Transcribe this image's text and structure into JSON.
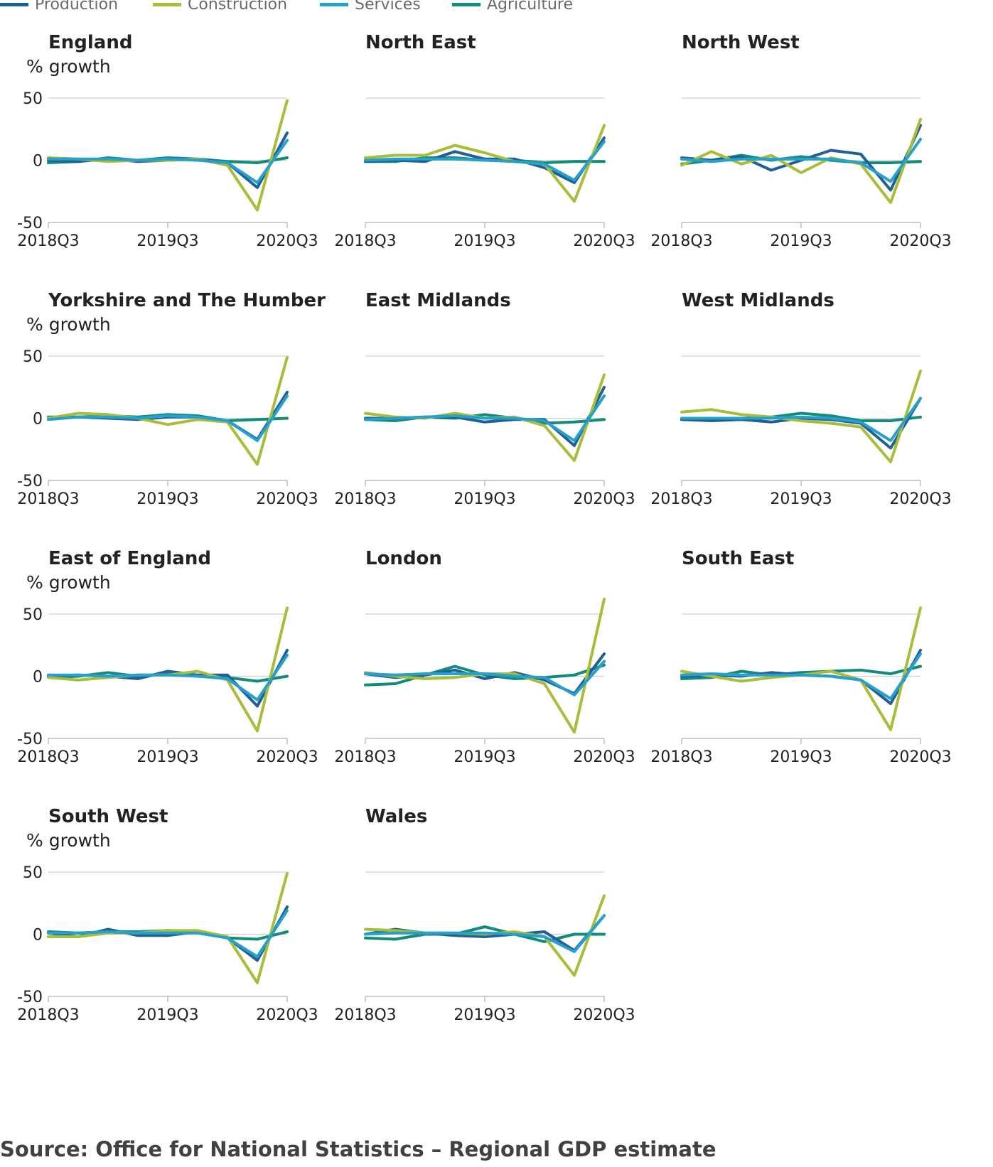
{
  "legend": [
    {
      "name": "Production",
      "color": "#206095"
    },
    {
      "name": "Construction",
      "color": "#a8bd3a"
    },
    {
      "name": "Services",
      "color": "#27a0cc"
    },
    {
      "name": "Agriculture",
      "color": "#118c7b"
    }
  ],
  "source": "Source: Office for National Statistics – Regional GDP estimate",
  "chart_data": [
    {
      "type": "line",
      "title": "England",
      "ylabel": "% growth",
      "ylim": [
        -50,
        50
      ],
      "yticks": [
        50,
        0,
        -50
      ],
      "xticks": [
        "2018Q3",
        "2019Q3",
        "2020Q3"
      ],
      "x": [
        "2018Q3",
        "2018Q4",
        "2019Q1",
        "2019Q2",
        "2019Q3",
        "2019Q4",
        "2020Q1",
        "2020Q2",
        "2020Q3"
      ],
      "series": [
        {
          "name": "Production",
          "values": [
            0,
            -1,
            1,
            -1,
            0,
            1,
            -2,
            -22,
            22
          ]
        },
        {
          "name": "Construction",
          "values": [
            2,
            1,
            -1,
            0,
            0,
            1,
            -4,
            -40,
            48
          ]
        },
        {
          "name": "Services",
          "values": [
            1,
            1,
            1,
            0,
            1,
            0,
            -2,
            -18,
            16
          ]
        },
        {
          "name": "Agriculture",
          "values": [
            -2,
            -1,
            2,
            0,
            2,
            1,
            -1,
            -2,
            2
          ]
        }
      ]
    },
    {
      "type": "line",
      "title": "North East",
      "ylabel": "",
      "ylim": [
        -50,
        50
      ],
      "yticks": [
        50,
        0,
        -50
      ],
      "xticks": [
        "2018Q3",
        "2019Q3",
        "2020Q3"
      ],
      "x": [
        "2018Q3",
        "2018Q4",
        "2019Q1",
        "2019Q2",
        "2019Q3",
        "2019Q4",
        "2020Q1",
        "2020Q2",
        "2020Q3"
      ],
      "series": [
        {
          "name": "Production",
          "values": [
            -1,
            0,
            -1,
            7,
            1,
            1,
            -6,
            -18,
            18
          ]
        },
        {
          "name": "Construction",
          "values": [
            2,
            4,
            4,
            12,
            6,
            -1,
            -3,
            -33,
            28
          ]
        },
        {
          "name": "Services",
          "values": [
            0,
            1,
            1,
            1,
            0,
            -1,
            -3,
            -16,
            15
          ]
        },
        {
          "name": "Agriculture",
          "values": [
            -1,
            -1,
            2,
            2,
            0,
            0,
            -2,
            -1,
            -1
          ]
        }
      ]
    },
    {
      "type": "line",
      "title": "North West",
      "ylabel": "",
      "ylim": [
        -50,
        50
      ],
      "yticks": [
        50,
        0,
        -50
      ],
      "xticks": [
        "2018Q3",
        "2019Q3",
        "2020Q3"
      ],
      "x": [
        "2018Q3",
        "2018Q4",
        "2019Q1",
        "2019Q2",
        "2019Q3",
        "2019Q4",
        "2020Q1",
        "2020Q2",
        "2020Q3"
      ],
      "series": [
        {
          "name": "Production",
          "values": [
            2,
            0,
            3,
            -8,
            0,
            8,
            5,
            -24,
            28
          ]
        },
        {
          "name": "Construction",
          "values": [
            -4,
            7,
            -3,
            4,
            -10,
            2,
            -3,
            -34,
            33
          ]
        },
        {
          "name": "Services",
          "values": [
            1,
            -1,
            1,
            1,
            1,
            1,
            -2,
            -17,
            17
          ]
        },
        {
          "name": "Agriculture",
          "values": [
            -3,
            0,
            4,
            0,
            3,
            0,
            -2,
            -2,
            -1
          ]
        }
      ]
    },
    {
      "type": "line",
      "title": "Yorkshire and The Humber",
      "ylabel": "% growth",
      "ylim": [
        -50,
        50
      ],
      "yticks": [
        50,
        0,
        -50
      ],
      "xticks": [
        "2018Q3",
        "2019Q3",
        "2020Q3"
      ],
      "x": [
        "2018Q3",
        "2018Q4",
        "2019Q1",
        "2019Q2",
        "2019Q3",
        "2019Q4",
        "2020Q1",
        "2020Q2",
        "2020Q3"
      ],
      "series": [
        {
          "name": "Production",
          "values": [
            0,
            1,
            0,
            -1,
            1,
            1,
            -2,
            -17,
            21
          ]
        },
        {
          "name": "Construction",
          "values": [
            0,
            4,
            3,
            0,
            -5,
            -1,
            -3,
            -37,
            49
          ]
        },
        {
          "name": "Services",
          "values": [
            -1,
            1,
            1,
            0,
            2,
            1,
            -2,
            -18,
            18
          ]
        },
        {
          "name": "Agriculture",
          "values": [
            1,
            1,
            2,
            1,
            3,
            2,
            -2,
            -1,
            0
          ]
        }
      ]
    },
    {
      "type": "line",
      "title": "East Midlands",
      "ylabel": "",
      "ylim": [
        -50,
        50
      ],
      "yticks": [
        50,
        0,
        -50
      ],
      "xticks": [
        "2018Q3",
        "2019Q3",
        "2020Q3"
      ],
      "x": [
        "2018Q3",
        "2018Q4",
        "2019Q1",
        "2019Q2",
        "2019Q3",
        "2019Q4",
        "2020Q1",
        "2020Q2",
        "2020Q3"
      ],
      "series": [
        {
          "name": "Production",
          "values": [
            0,
            0,
            1,
            1,
            -3,
            -1,
            -1,
            -22,
            25
          ]
        },
        {
          "name": "Construction",
          "values": [
            4,
            1,
            0,
            4,
            0,
            1,
            -6,
            -34,
            35
          ]
        },
        {
          "name": "Services",
          "values": [
            -1,
            0,
            1,
            2,
            0,
            0,
            -2,
            -18,
            18
          ]
        },
        {
          "name": "Agriculture",
          "values": [
            -1,
            -2,
            1,
            0,
            3,
            0,
            -4,
            -3,
            -1
          ]
        }
      ]
    },
    {
      "type": "line",
      "title": "West Midlands",
      "ylabel": "",
      "ylim": [
        -50,
        50
      ],
      "yticks": [
        50,
        0,
        -50
      ],
      "xticks": [
        "2018Q3",
        "2019Q3",
        "2020Q3"
      ],
      "x": [
        "2018Q3",
        "2018Q4",
        "2019Q1",
        "2019Q2",
        "2019Q3",
        "2019Q4",
        "2020Q1",
        "2020Q2",
        "2020Q3"
      ],
      "series": [
        {
          "name": "Production",
          "values": [
            -1,
            -2,
            -1,
            -3,
            0,
            -1,
            -4,
            -24,
            16
          ]
        },
        {
          "name": "Construction",
          "values": [
            5,
            7,
            3,
            1,
            -2,
            -4,
            -7,
            -35,
            38
          ]
        },
        {
          "name": "Services",
          "values": [
            0,
            0,
            0,
            0,
            1,
            0,
            -3,
            -18,
            16
          ]
        },
        {
          "name": "Agriculture",
          "values": [
            -1,
            -1,
            0,
            1,
            4,
            2,
            -2,
            -2,
            1
          ]
        }
      ]
    },
    {
      "type": "line",
      "title": "East of England",
      "ylabel": "% growth",
      "ylim": [
        -50,
        50
      ],
      "yticks": [
        50,
        0,
        -50
      ],
      "xticks": [
        "2018Q3",
        "2019Q3",
        "2020Q3"
      ],
      "x": [
        "2018Q3",
        "2018Q4",
        "2019Q1",
        "2019Q2",
        "2019Q3",
        "2019Q4",
        "2020Q1",
        "2020Q2",
        "2020Q3"
      ],
      "series": [
        {
          "name": "Production",
          "values": [
            0,
            1,
            0,
            -2,
            4,
            1,
            1,
            -24,
            21
          ]
        },
        {
          "name": "Construction",
          "values": [
            -1,
            -3,
            -1,
            1,
            1,
            4,
            -3,
            -44,
            55
          ]
        },
        {
          "name": "Services",
          "values": [
            1,
            1,
            0,
            1,
            1,
            0,
            -2,
            -19,
            17
          ]
        },
        {
          "name": "Agriculture",
          "values": [
            -1,
            0,
            3,
            0,
            2,
            0,
            -1,
            -4,
            0
          ]
        }
      ]
    },
    {
      "type": "line",
      "title": "London",
      "ylabel": "",
      "ylim": [
        -50,
        50
      ],
      "yticks": [
        50,
        0,
        -50
      ],
      "xticks": [
        "2018Q3",
        "2019Q3",
        "2020Q3"
      ],
      "x": [
        "2018Q3",
        "2018Q4",
        "2019Q1",
        "2019Q2",
        "2019Q3",
        "2019Q4",
        "2020Q1",
        "2020Q2",
        "2020Q3"
      ],
      "series": [
        {
          "name": "Production",
          "values": [
            2,
            -1,
            1,
            5,
            -2,
            3,
            -3,
            -14,
            18
          ]
        },
        {
          "name": "Construction",
          "values": [
            3,
            0,
            -2,
            -1,
            2,
            2,
            -6,
            -45,
            62
          ]
        },
        {
          "name": "Services",
          "values": [
            2,
            1,
            2,
            2,
            2,
            0,
            -1,
            -15,
            12
          ]
        },
        {
          "name": "Agriculture",
          "values": [
            -7,
            -6,
            1,
            8,
            1,
            -2,
            -1,
            1,
            9
          ]
        }
      ]
    },
    {
      "type": "line",
      "title": "South East",
      "ylabel": "",
      "ylim": [
        -50,
        50
      ],
      "yticks": [
        50,
        0,
        -50
      ],
      "xticks": [
        "2018Q3",
        "2019Q3",
        "2020Q3"
      ],
      "x": [
        "2018Q3",
        "2018Q4",
        "2019Q1",
        "2019Q2",
        "2019Q3",
        "2019Q4",
        "2020Q1",
        "2020Q2",
        "2020Q3"
      ],
      "series": [
        {
          "name": "Production",
          "values": [
            0,
            1,
            0,
            3,
            1,
            0,
            -3,
            -22,
            21
          ]
        },
        {
          "name": "Construction",
          "values": [
            4,
            0,
            -4,
            -1,
            1,
            4,
            -3,
            -43,
            55
          ]
        },
        {
          "name": "Services",
          "values": [
            1,
            2,
            1,
            1,
            1,
            0,
            -3,
            -18,
            18
          ]
        },
        {
          "name": "Agriculture",
          "values": [
            -2,
            -1,
            4,
            1,
            3,
            4,
            5,
            2,
            8
          ]
        }
      ]
    },
    {
      "type": "line",
      "title": "South West",
      "ylabel": "% growth",
      "ylim": [
        -50,
        50
      ],
      "yticks": [
        50,
        0,
        -50
      ],
      "xticks": [
        "2018Q3",
        "2019Q3",
        "2020Q3"
      ],
      "x": [
        "2018Q3",
        "2018Q4",
        "2019Q1",
        "2019Q2",
        "2019Q3",
        "2019Q4",
        "2020Q1",
        "2020Q2",
        "2020Q3"
      ],
      "series": [
        {
          "name": "Production",
          "values": [
            1,
            -2,
            4,
            -1,
            -1,
            2,
            -3,
            -21,
            22
          ]
        },
        {
          "name": "Construction",
          "values": [
            -2,
            -2,
            1,
            1,
            3,
            3,
            -2,
            -39,
            49
          ]
        },
        {
          "name": "Services",
          "values": [
            1,
            1,
            2,
            1,
            1,
            1,
            -3,
            -18,
            19
          ]
        },
        {
          "name": "Agriculture",
          "values": [
            2,
            1,
            2,
            2,
            3,
            2,
            -3,
            -4,
            2
          ]
        }
      ]
    },
    {
      "type": "line",
      "title": "Wales",
      "ylabel": "",
      "ylim": [
        -50,
        50
      ],
      "yticks": [
        50,
        0,
        -50
      ],
      "xticks": [
        "2018Q3",
        "2019Q3",
        "2020Q3"
      ],
      "x": [
        "2018Q3",
        "2018Q4",
        "2019Q1",
        "2019Q2",
        "2019Q3",
        "2019Q4",
        "2020Q1",
        "2020Q2",
        "2020Q3"
      ],
      "series": [
        {
          "name": "Production",
          "values": [
            0,
            4,
            1,
            -1,
            -2,
            0,
            2,
            -13,
            15
          ]
        },
        {
          "name": "Construction",
          "values": [
            4,
            3,
            1,
            1,
            0,
            2,
            -2,
            -33,
            31
          ]
        },
        {
          "name": "Services",
          "values": [
            0,
            1,
            1,
            1,
            1,
            0,
            -2,
            -14,
            15
          ]
        },
        {
          "name": "Agriculture",
          "values": [
            -3,
            -4,
            0,
            0,
            6,
            0,
            -6,
            0,
            0
          ]
        }
      ]
    }
  ]
}
